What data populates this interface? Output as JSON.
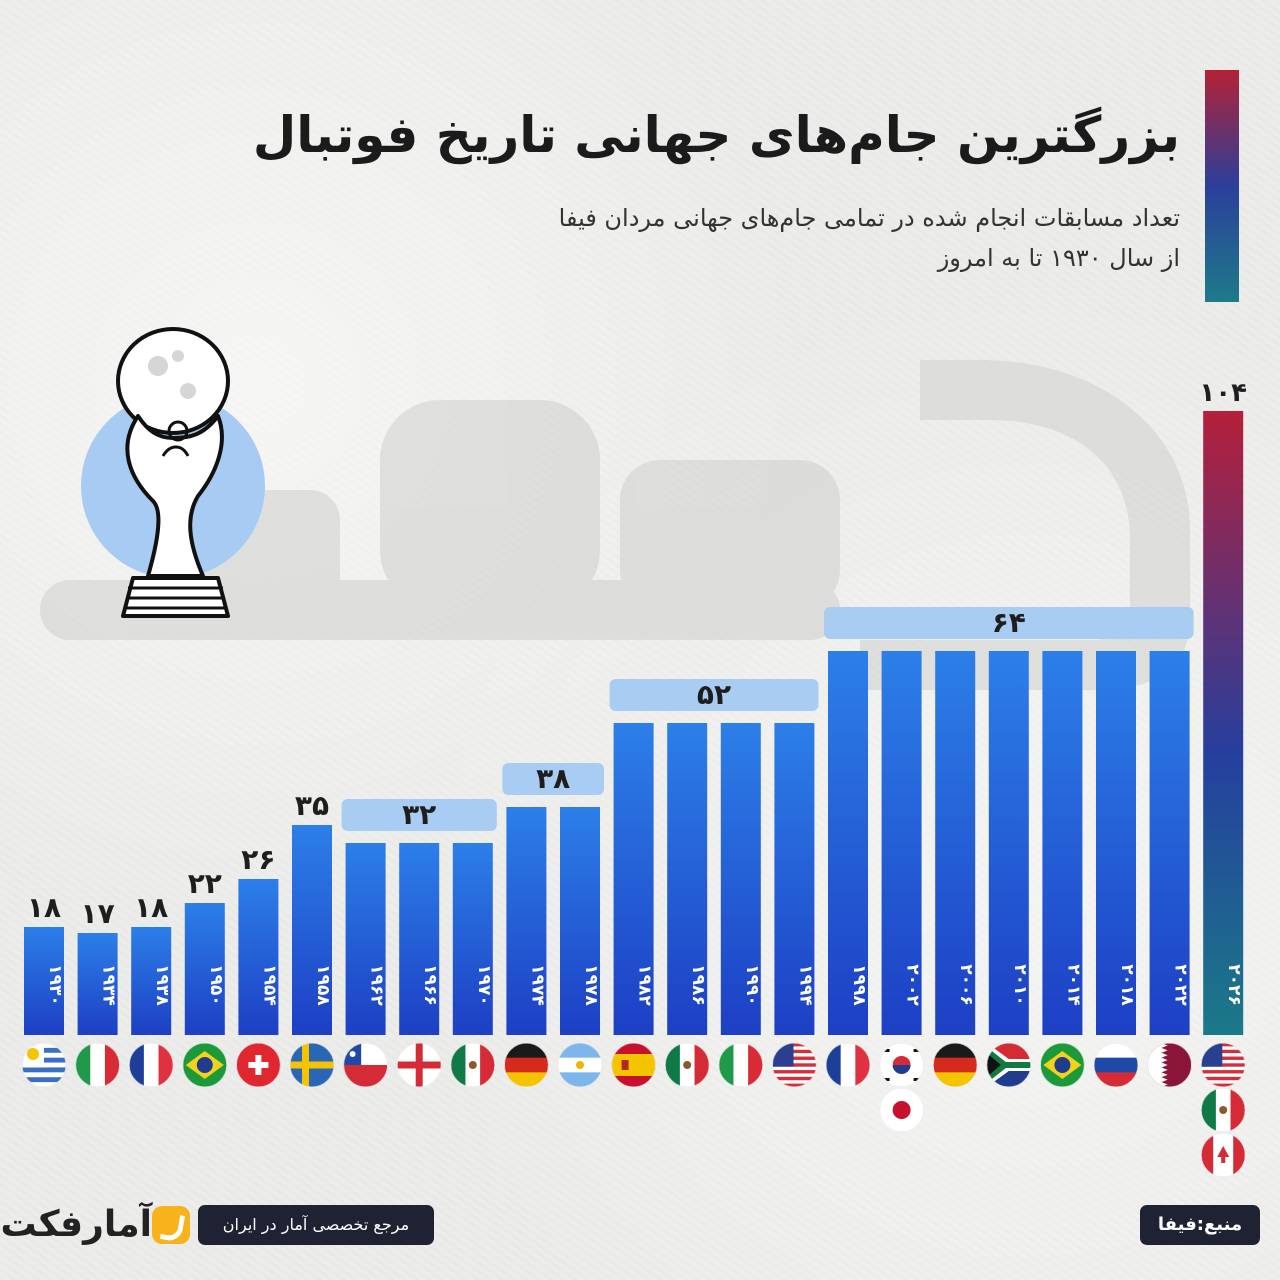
{
  "header": {
    "title": "بزرگترین جام‌های جهانی تاریخ فوتبال",
    "subtitle_line1": "تعداد مسابقات انجام شده در تمامی جام‌های جهانی مردان فیفا",
    "subtitle_line2": "از سال ۱۹۳۰ تا به امروز"
  },
  "footer": {
    "brand": "آمارفکت",
    "tagline": "مرجع تخصصی آمار در ایران",
    "source": "منبع:فیفا"
  },
  "colors": {
    "bar_top": "#2c7fe8",
    "bar_bottom": "#1d3fc4",
    "last_bar_top": "#b51f3a",
    "last_bar_bottom": "#1a7a88",
    "group_label_bg": "#a9cdf2",
    "title_bar_top": "#b32235"
  },
  "chart_data": {
    "type": "bar",
    "categories": [
      "۱۹۳۰",
      "۱۹۳۴",
      "۱۹۳۸",
      "۱۹۵۰",
      "۱۹۵۴",
      "۱۹۵۸",
      "۱۹۶۲",
      "۱۹۶۶",
      "۱۹۷۰",
      "۱۹۷۴",
      "۱۹۷۸",
      "۱۹۸۲",
      "۱۹۸۶",
      "۱۹۹۰",
      "۱۹۹۴",
      "۱۹۹۸",
      "۲۰۰۲",
      "۲۰۰۶",
      "۲۰۱۰",
      "۲۰۱۴",
      "۲۰۱۸",
      "۲۰۲۲",
      "۲۰۲۶"
    ],
    "values": [
      18,
      17,
      18,
      22,
      26,
      35,
      32,
      32,
      32,
      38,
      38,
      52,
      52,
      52,
      52,
      64,
      64,
      64,
      64,
      64,
      64,
      64,
      104
    ],
    "value_labels": [
      "۱۸",
      "۱۷",
      "۱۸",
      "۲۲",
      "۲۶",
      "۳۵",
      "۳۲",
      "۳۲",
      "۳۲",
      "۳۸",
      "۳۸",
      "۵۲",
      "۵۲",
      "۵۲",
      "۵۲",
      "۶۴",
      "۶۴",
      "۶۴",
      "۶۴",
      "۶۴",
      "۶۴",
      "۶۴",
      "۱۰۴"
    ],
    "groups": [
      {
        "start": 0,
        "end": 0,
        "label": "۱۸",
        "boxed": false
      },
      {
        "start": 1,
        "end": 1,
        "label": "۱۷",
        "boxed": false
      },
      {
        "start": 2,
        "end": 2,
        "label": "۱۸",
        "boxed": false
      },
      {
        "start": 3,
        "end": 3,
        "label": "۲۲",
        "boxed": false
      },
      {
        "start": 4,
        "end": 4,
        "label": "۲۶",
        "boxed": false
      },
      {
        "start": 5,
        "end": 5,
        "label": "۳۵",
        "boxed": false
      },
      {
        "start": 6,
        "end": 8,
        "label": "۳۲",
        "boxed": true
      },
      {
        "start": 9,
        "end": 10,
        "label": "۳۸",
        "boxed": true
      },
      {
        "start": 11,
        "end": 14,
        "label": "۵۲",
        "boxed": true
      },
      {
        "start": 15,
        "end": 21,
        "label": "۶۴",
        "boxed": true
      },
      {
        "start": 22,
        "end": 22,
        "label": "۱۰۴",
        "boxed": false
      }
    ],
    "hosts": [
      [
        "uruguay"
      ],
      [
        "italy"
      ],
      [
        "france"
      ],
      [
        "brazil"
      ],
      [
        "switzerland"
      ],
      [
        "sweden"
      ],
      [
        "chile"
      ],
      [
        "england"
      ],
      [
        "mexico"
      ],
      [
        "germany"
      ],
      [
        "argentina"
      ],
      [
        "spain"
      ],
      [
        "mexico"
      ],
      [
        "italy"
      ],
      [
        "usa"
      ],
      [
        "france"
      ],
      [
        "south-korea",
        "japan"
      ],
      [
        "germany"
      ],
      [
        "south-africa"
      ],
      [
        "brazil"
      ],
      [
        "russia"
      ],
      [
        "qatar"
      ],
      [
        "usa",
        "mexico",
        "canada"
      ]
    ],
    "ylim": [
      0,
      110
    ]
  }
}
